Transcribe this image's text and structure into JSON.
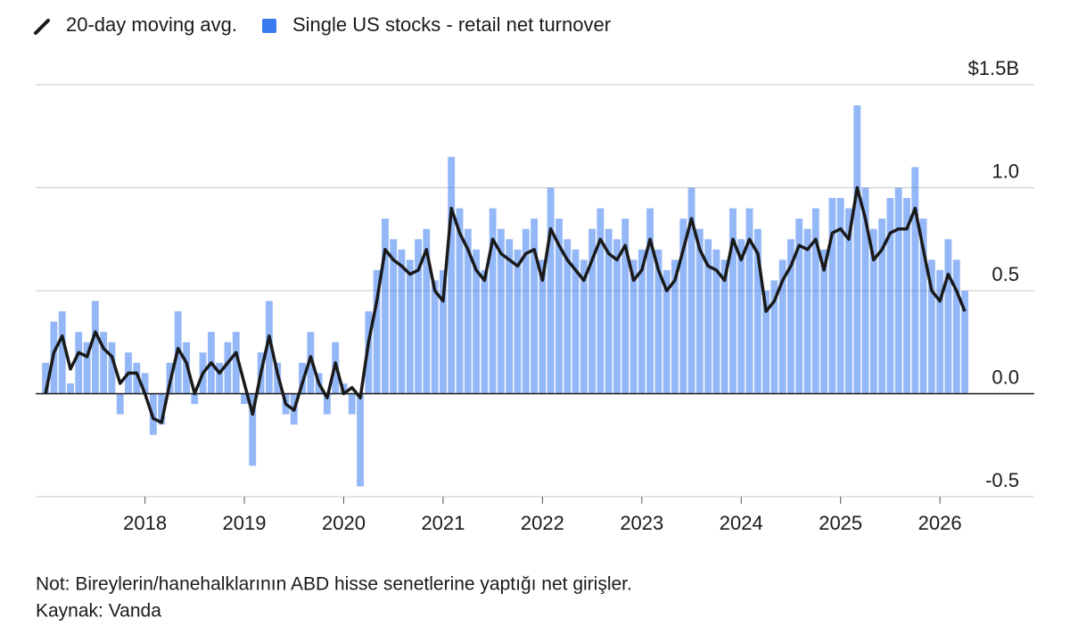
{
  "chart_data": {
    "type": "bar",
    "legend": "top-left",
    "grid": true,
    "xlim": [
      2016.9,
      2026.95
    ],
    "xticks": [
      2018,
      2019,
      2020,
      2021,
      2022,
      2023,
      2024,
      2025,
      2026
    ],
    "ylim": [
      -0.5,
      1.5
    ],
    "yticks": [
      -0.5,
      {
        "value": 0,
        "label": "0.0"
      },
      0.5,
      {
        "value": 1,
        "label": "1.0"
      },
      {
        "value": 1.5,
        "label": "$1.5B"
      }
    ],
    "x": [
      2017.0,
      2017.083,
      2017.167,
      2017.25,
      2017.333,
      2017.417,
      2017.5,
      2017.583,
      2017.667,
      2017.75,
      2017.833,
      2017.917,
      2018.0,
      2018.083,
      2018.167,
      2018.25,
      2018.333,
      2018.417,
      2018.5,
      2018.583,
      2018.667,
      2018.75,
      2018.833,
      2018.917,
      2019.0,
      2019.083,
      2019.167,
      2019.25,
      2019.333,
      2019.417,
      2019.5,
      2019.583,
      2019.667,
      2019.75,
      2019.833,
      2019.917,
      2020.0,
      2020.083,
      2020.167,
      2020.25,
      2020.333,
      2020.417,
      2020.5,
      2020.583,
      2020.667,
      2020.75,
      2020.833,
      2020.917,
      2021.0,
      2021.083,
      2021.167,
      2021.25,
      2021.333,
      2021.417,
      2021.5,
      2021.583,
      2021.667,
      2021.75,
      2021.833,
      2021.917,
      2022.0,
      2022.083,
      2022.167,
      2022.25,
      2022.333,
      2022.417,
      2022.5,
      2022.583,
      2022.667,
      2022.75,
      2022.833,
      2022.917,
      2023.0,
      2023.083,
      2023.167,
      2023.25,
      2023.333,
      2023.417,
      2023.5,
      2023.583,
      2023.667,
      2023.75,
      2023.833,
      2023.917,
      2024.0,
      2024.083,
      2024.167,
      2024.25,
      2024.333,
      2024.417,
      2024.5,
      2024.583,
      2024.667,
      2024.75,
      2024.833,
      2024.917,
      2025.0,
      2025.083,
      2025.167,
      2025.25,
      2025.333,
      2025.417,
      2025.5,
      2025.583,
      2025.667,
      2025.75,
      2025.833,
      2025.917,
      2026.0,
      2026.083,
      2026.167,
      2026.25
    ],
    "series": [
      {
        "name": "20-day moving avg.",
        "type": "line",
        "color": "#1a1a1a",
        "values": [
          0.0,
          0.2,
          0.28,
          0.12,
          0.2,
          0.18,
          0.3,
          0.22,
          0.18,
          0.05,
          0.1,
          0.1,
          0.0,
          -0.12,
          -0.14,
          0.05,
          0.22,
          0.15,
          0.0,
          0.1,
          0.15,
          0.1,
          0.15,
          0.2,
          0.05,
          -0.1,
          0.1,
          0.28,
          0.1,
          -0.05,
          -0.08,
          0.05,
          0.18,
          0.05,
          -0.02,
          0.15,
          0.0,
          0.03,
          -0.02,
          0.25,
          0.45,
          0.7,
          0.65,
          0.62,
          0.58,
          0.6,
          0.7,
          0.5,
          0.45,
          0.9,
          0.78,
          0.7,
          0.6,
          0.55,
          0.75,
          0.68,
          0.65,
          0.62,
          0.68,
          0.7,
          0.55,
          0.8,
          0.72,
          0.65,
          0.6,
          0.55,
          0.65,
          0.75,
          0.68,
          0.65,
          0.72,
          0.55,
          0.6,
          0.75,
          0.6,
          0.5,
          0.55,
          0.7,
          0.85,
          0.7,
          0.62,
          0.6,
          0.55,
          0.75,
          0.65,
          0.75,
          0.68,
          0.4,
          0.45,
          0.55,
          0.62,
          0.72,
          0.7,
          0.75,
          0.6,
          0.78,
          0.8,
          0.75,
          1.0,
          0.85,
          0.65,
          0.7,
          0.78,
          0.8,
          0.8,
          0.9,
          0.7,
          0.5,
          0.45,
          0.58,
          0.5,
          0.4
        ]
      },
      {
        "name": "Single US stocks - retail net turnover",
        "type": "bar",
        "color": "#3b7bf0",
        "values": [
          0.15,
          0.35,
          0.4,
          0.05,
          0.3,
          0.25,
          0.45,
          0.3,
          0.25,
          -0.1,
          0.2,
          0.15,
          0.1,
          -0.2,
          -0.15,
          0.15,
          0.4,
          0.25,
          -0.05,
          0.2,
          0.3,
          0.15,
          0.25,
          0.3,
          -0.05,
          -0.35,
          0.2,
          0.45,
          0.15,
          -0.1,
          -0.15,
          0.15,
          0.3,
          0.1,
          -0.1,
          0.25,
          0.05,
          -0.1,
          -0.45,
          0.4,
          0.6,
          0.85,
          0.75,
          0.7,
          0.65,
          0.75,
          0.8,
          0.55,
          0.6,
          1.15,
          0.9,
          0.8,
          0.7,
          0.6,
          0.9,
          0.8,
          0.75,
          0.7,
          0.8,
          0.85,
          0.65,
          1.0,
          0.85,
          0.75,
          0.7,
          0.65,
          0.8,
          0.9,
          0.8,
          0.75,
          0.85,
          0.65,
          0.7,
          0.9,
          0.7,
          0.6,
          0.65,
          0.85,
          1.0,
          0.8,
          0.75,
          0.7,
          0.65,
          0.9,
          0.75,
          0.9,
          0.8,
          0.5,
          0.55,
          0.65,
          0.75,
          0.85,
          0.8,
          0.9,
          0.7,
          0.95,
          0.95,
          0.9,
          1.4,
          1.0,
          0.8,
          0.85,
          0.95,
          1.0,
          0.95,
          1.1,
          0.85,
          0.65,
          0.6,
          0.75,
          0.65,
          0.5
        ]
      }
    ],
    "note": "Not: Bireylerin/hanehalklarının ABD hisse senetlerine yaptığı net girişler.",
    "source": "Kaynak: Vanda"
  }
}
